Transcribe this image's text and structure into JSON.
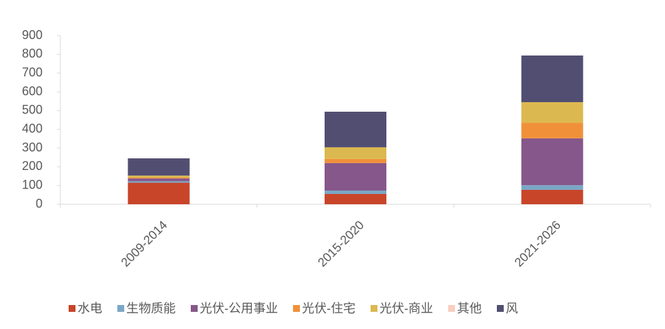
{
  "chart_data": {
    "type": "stacked-bar",
    "categories": [
      "2009-2014",
      "2015-2020",
      "2021-2026"
    ],
    "series": [
      {
        "name": "水电",
        "color": "#c8452a",
        "values": [
          115,
          55,
          77
        ]
      },
      {
        "name": "生物质能",
        "color": "#7ba7c6",
        "values": [
          8,
          18,
          25
        ]
      },
      {
        "name": "光伏-公用事业",
        "color": "#86578a",
        "values": [
          15,
          147,
          250
        ]
      },
      {
        "name": "光伏-住宅",
        "color": "#f0913a",
        "values": [
          5,
          22,
          83
        ]
      },
      {
        "name": "光伏-商业",
        "color": "#dcb850",
        "values": [
          10,
          62,
          110
        ]
      },
      {
        "name": "其他",
        "color": "#f9cfc0",
        "values": [
          0,
          0,
          0
        ]
      },
      {
        "name": "风",
        "color": "#524e72",
        "values": [
          92,
          190,
          249
        ]
      }
    ],
    "ylim": [
      0,
      900
    ],
    "yticks": [
      0,
      100,
      200,
      300,
      400,
      500,
      600,
      700,
      800,
      900
    ],
    "legend": "bottom"
  }
}
